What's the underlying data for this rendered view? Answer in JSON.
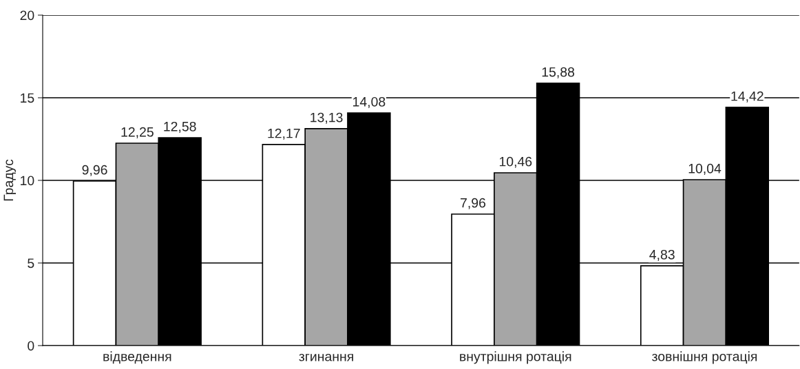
{
  "chart_data": {
    "type": "bar",
    "ylabel": "Градус",
    "categories": [
      "відведення",
      "згинання",
      "внутрішня ротація",
      "зовнішня ротація"
    ],
    "series": [
      {
        "color": "#ffffff",
        "values": [
          9.96,
          12.17,
          7.96,
          4.83
        ],
        "value_labels": [
          "9,96",
          "12,17",
          "7,96",
          "4,83"
        ]
      },
      {
        "color": "#a6a6a6",
        "values": [
          12.25,
          13.13,
          10.46,
          10.04
        ],
        "value_labels": [
          "12,25",
          "13,13",
          "10,46",
          "10,04"
        ]
      },
      {
        "color": "#000000",
        "values": [
          12.58,
          14.08,
          15.88,
          14.42
        ],
        "value_labels": [
          "12,58",
          "14,08",
          "15,88",
          "14,42"
        ]
      }
    ],
    "ylim": [
      0,
      20
    ],
    "yticks": [
      0,
      5,
      10,
      15,
      20
    ],
    "grid": "y",
    "legend": false
  }
}
